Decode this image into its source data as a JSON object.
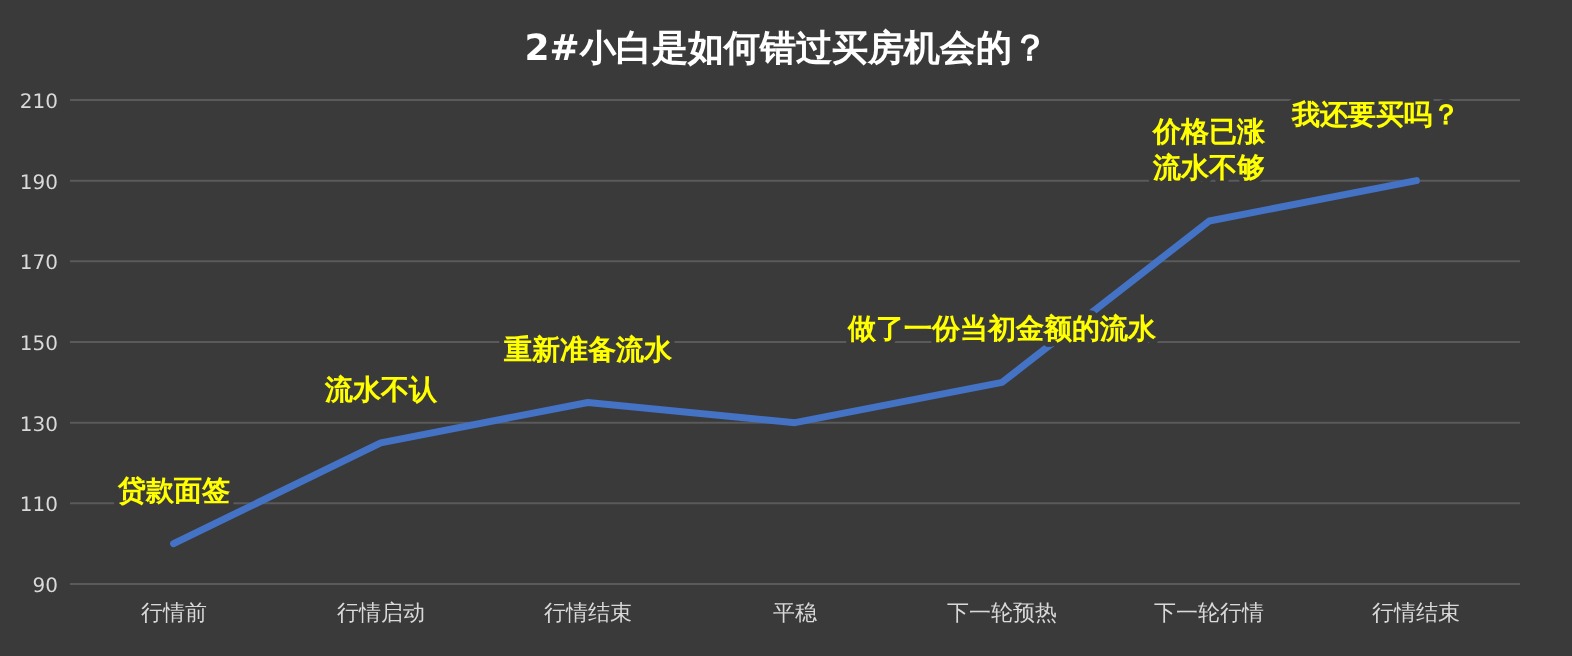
{
  "chart_data": {
    "type": "line",
    "title": "2#小白是如何错过买房机会的？",
    "categories": [
      "行情前",
      "行情启动",
      "行情结束",
      "平稳",
      "下一轮预热",
      "下一轮行情",
      "行情结束"
    ],
    "series": [
      {
        "color": "#4472c4",
        "values": [
          100,
          125,
          135,
          130,
          140,
          180,
          190
        ]
      }
    ],
    "ylim": [
      90,
      210
    ],
    "yticks": [
      90,
      110,
      130,
      150,
      170,
      190,
      210
    ],
    "grid": "y",
    "marker": "none",
    "line_style": "solid",
    "annotations": [
      {
        "text": "贷款面签",
        "x": "行情前",
        "y": 100
      },
      {
        "text": "流水不认",
        "x": "行情启动",
        "y": 125
      },
      {
        "text": "重新准备流水",
        "x": "行情结束",
        "y": 135
      },
      {
        "text": "做了一份当初金额的流水",
        "x": "下一轮预热",
        "y": 140
      },
      {
        "text": "价格已涨",
        "x": "下一轮行情",
        "y": 180
      },
      {
        "text": "流水不够",
        "x": "下一轮行情",
        "y": 180
      },
      "我还要买吗？"
    ]
  }
}
